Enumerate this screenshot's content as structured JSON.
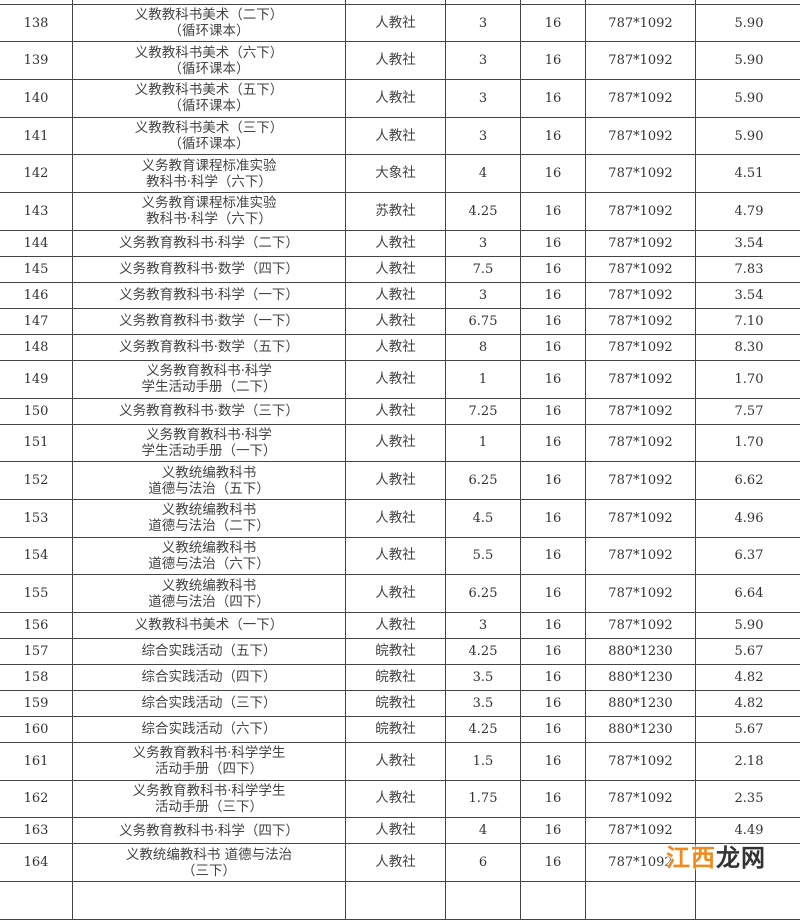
{
  "rows": [
    {
      "no": "138",
      "title": "义教教科书美术（二下）\n（循环课本）",
      "publisher": "人教社",
      "sheets": "3",
      "format": "16",
      "size": "787*1092",
      "price": "5.90"
    },
    {
      "no": "139",
      "title": "义教教科书美术（六下）\n（循环课本）",
      "publisher": "人教社",
      "sheets": "3",
      "format": "16",
      "size": "787*1092",
      "price": "5.90"
    },
    {
      "no": "140",
      "title": "义教教科书美术（五下）\n（循环课本）",
      "publisher": "人教社",
      "sheets": "3",
      "format": "16",
      "size": "787*1092",
      "price": "5.90"
    },
    {
      "no": "141",
      "title": "义教教科书美术（三下）\n（循环课本）",
      "publisher": "人教社",
      "sheets": "3",
      "format": "16",
      "size": "787*1092",
      "price": "5.90"
    },
    {
      "no": "142",
      "title": "义务教育课程标准实验\n教科书·科学（六下）",
      "publisher": "大象社",
      "sheets": "4",
      "format": "16",
      "size": "787*1092",
      "price": "4.51"
    },
    {
      "no": "143",
      "title": "义务教育课程标准实验\n教科书·科学（六下）",
      "publisher": "苏教社",
      "sheets": "4.25",
      "format": "16",
      "size": "787*1092",
      "price": "4.79"
    },
    {
      "no": "144",
      "title": "义务教育教科书·科学（二下）",
      "publisher": "人教社",
      "sheets": "3",
      "format": "16",
      "size": "787*1092",
      "price": "3.54"
    },
    {
      "no": "145",
      "title": "义务教育教科书·数学（四下）",
      "publisher": "人教社",
      "sheets": "7.5",
      "format": "16",
      "size": "787*1092",
      "price": "7.83"
    },
    {
      "no": "146",
      "title": "义务教育教科书·科学（一下）",
      "publisher": "人教社",
      "sheets": "3",
      "format": "16",
      "size": "787*1092",
      "price": "3.54"
    },
    {
      "no": "147",
      "title": "义务教育教科书·数学（一下）",
      "publisher": "人教社",
      "sheets": "6.75",
      "format": "16",
      "size": "787*1092",
      "price": "7.10"
    },
    {
      "no": "148",
      "title": "义务教育教科书·数学（五下）",
      "publisher": "人教社",
      "sheets": "8",
      "format": "16",
      "size": "787*1092",
      "price": "8.30"
    },
    {
      "no": "149",
      "title": "义务教育教科书·科学\n学生活动手册（二下）",
      "publisher": "人教社",
      "sheets": "1",
      "format": "16",
      "size": "787*1092",
      "price": "1.70"
    },
    {
      "no": "150",
      "title": "义务教育教科书·数学（三下）",
      "publisher": "人教社",
      "sheets": "7.25",
      "format": "16",
      "size": "787*1092",
      "price": "7.57"
    },
    {
      "no": "151",
      "title": "义务教育教科书·科学\n学生活动手册（一下）",
      "publisher": "人教社",
      "sheets": "1",
      "format": "16",
      "size": "787*1092",
      "price": "1.70"
    },
    {
      "no": "152",
      "title": "义教统编教科书\n道德与法治（五下）",
      "publisher": "人教社",
      "sheets": "6.25",
      "format": "16",
      "size": "787*1092",
      "price": "6.62"
    },
    {
      "no": "153",
      "title": "义教统编教科书\n道德与法治（二下）",
      "publisher": "人教社",
      "sheets": "4.5",
      "format": "16",
      "size": "787*1092",
      "price": "4.96"
    },
    {
      "no": "154",
      "title": "义教统编教科书\n道德与法治（六下）",
      "publisher": "人教社",
      "sheets": "5.5",
      "format": "16",
      "size": "787*1092",
      "price": "6.37"
    },
    {
      "no": "155",
      "title": "义教统编教科书\n道德与法治（四下）",
      "publisher": "人教社",
      "sheets": "6.25",
      "format": "16",
      "size": "787*1092",
      "price": "6.64"
    },
    {
      "no": "156",
      "title": "义教教科书美术（一下）",
      "publisher": "人教社",
      "sheets": "3",
      "format": "16",
      "size": "787*1092",
      "price": "5.90"
    },
    {
      "no": "157",
      "title": "综合实践活动（五下）",
      "publisher": "皖教社",
      "sheets": "4.25",
      "format": "16",
      "size": "880*1230",
      "price": "5.67"
    },
    {
      "no": "158",
      "title": "综合实践活动（四下）",
      "publisher": "皖教社",
      "sheets": "3.5",
      "format": "16",
      "size": "880*1230",
      "price": "4.82"
    },
    {
      "no": "159",
      "title": "综合实践活动（三下）",
      "publisher": "皖教社",
      "sheets": "3.5",
      "format": "16",
      "size": "880*1230",
      "price": "4.82"
    },
    {
      "no": "160",
      "title": "综合实践活动（六下）",
      "publisher": "皖教社",
      "sheets": "4.25",
      "format": "16",
      "size": "880*1230",
      "price": "5.67"
    },
    {
      "no": "161",
      "title": "义务教育教科书·科学学生\n活动手册（四下）",
      "publisher": "人教社",
      "sheets": "1.5",
      "format": "16",
      "size": "787*1092",
      "price": "2.18"
    },
    {
      "no": "162",
      "title": "义务教育教科书·科学学生\n活动手册（三下）",
      "publisher": "人教社",
      "sheets": "1.75",
      "format": "16",
      "size": "787*1092",
      "price": "2.35"
    },
    {
      "no": "163",
      "title": "义务教育教科书·科学（四下）",
      "publisher": "人教社",
      "sheets": "4",
      "format": "16",
      "size": "787*1092",
      "price": "4.49"
    },
    {
      "no": "164",
      "title": "义教统编教科书 道德与法治\n（三下）",
      "publisher": "人教社",
      "sheets": "6",
      "format": "16",
      "size": "787*1092",
      "price": ""
    }
  ],
  "watermark": {
    "part1": "江西",
    "part2": "龙网"
  }
}
